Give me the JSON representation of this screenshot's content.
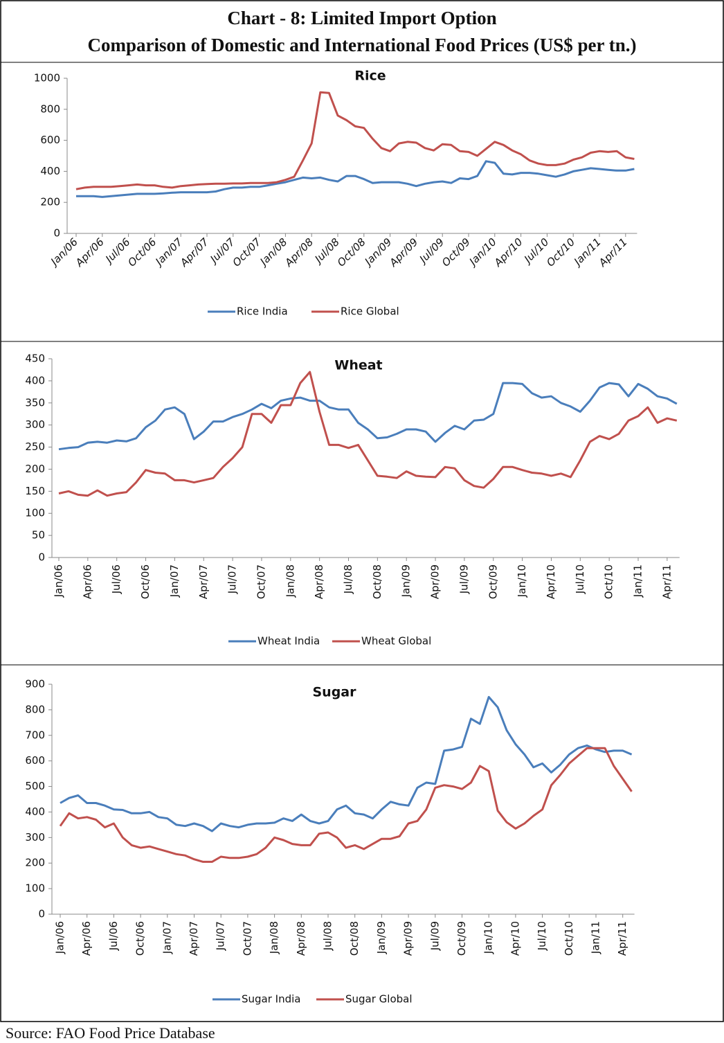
{
  "title": "Chart - 8: Limited Import Option",
  "subtitle": "Comparison of Domestic and International Food Prices (US$ per tn.)",
  "source": "Source: FAO Food Price Database",
  "chart_data": [
    {
      "type": "line",
      "title": "Rice",
      "categories": [
        "Jan/06",
        null,
        null,
        "Apr/06",
        null,
        null,
        "Jul/06",
        null,
        null,
        "Oct/06",
        null,
        null,
        "Jan/07",
        null,
        null,
        "Apr/07",
        null,
        null,
        "Jul/07",
        null,
        null,
        "Oct/07",
        null,
        null,
        "Jan/08",
        null,
        null,
        "Apr/08",
        null,
        null,
        "Jul/08",
        null,
        null,
        "Oct/08",
        null,
        null,
        "Jan/09",
        null,
        null,
        "Apr/09",
        null,
        null,
        "Jul/09",
        null,
        null,
        "Oct/09",
        null,
        null,
        "Jan/10",
        null,
        null,
        "Apr/10",
        null,
        null,
        "Jul/10",
        null,
        null,
        "Oct/10",
        null,
        null,
        "Jan/11",
        null,
        null,
        "Apr/11",
        null
      ],
      "series": [
        {
          "name": "Rice India",
          "color": "#4a7ebb",
          "values": [
            240,
            240,
            240,
            235,
            240,
            245,
            250,
            255,
            255,
            255,
            258,
            262,
            265,
            265,
            265,
            265,
            270,
            285,
            295,
            295,
            300,
            300,
            310,
            320,
            330,
            345,
            360,
            355,
            360,
            345,
            335,
            370,
            370,
            350,
            325,
            330,
            330,
            330,
            320,
            305,
            320,
            330,
            335,
            325,
            355,
            350,
            370,
            465,
            455,
            385,
            380,
            390,
            390,
            385,
            375,
            365,
            380,
            400,
            410,
            420,
            415,
            410,
            405,
            405,
            415
          ]
        },
        {
          "name": "Rice Global",
          "color": "#c0504d",
          "values": [
            285,
            295,
            300,
            300,
            300,
            305,
            310,
            315,
            310,
            310,
            300,
            295,
            305,
            310,
            315,
            318,
            320,
            320,
            322,
            322,
            325,
            325,
            325,
            330,
            345,
            365,
            470,
            580,
            910,
            905,
            760,
            730,
            690,
            680,
            610,
            550,
            530,
            580,
            590,
            585,
            550,
            535,
            575,
            570,
            530,
            525,
            500,
            545,
            590,
            570,
            535,
            510,
            470,
            450,
            440,
            440,
            450,
            475,
            490,
            520,
            530,
            525,
            530,
            490,
            480
          ]
        }
      ],
      "ylim": [
        0,
        1000
      ],
      "yticks": [
        0,
        200,
        400,
        600,
        800,
        1000
      ],
      "legend": "bottom"
    },
    {
      "type": "line",
      "title": "Wheat",
      "categories": [
        "Jan/06",
        null,
        null,
        "Apr/06",
        null,
        null,
        "Jul/06",
        null,
        null,
        "Oct/06",
        null,
        null,
        "Jan/07",
        null,
        null,
        "Apr/07",
        null,
        null,
        "Jul/07",
        null,
        null,
        "Oct/07",
        null,
        null,
        "Jan/08",
        null,
        null,
        "Apr/08",
        null,
        null,
        "Jul/08",
        null,
        null,
        "Oct/08",
        null,
        null,
        "Jan/09",
        null,
        null,
        "Apr/09",
        null,
        null,
        "Jul/09",
        null,
        null,
        "Oct/09",
        null,
        null,
        "Jan/10",
        null,
        null,
        "Apr/10",
        null,
        null,
        "Jul/10",
        null,
        null,
        "Oct/10",
        null,
        null,
        "Jan/11",
        null,
        null,
        "Apr/11",
        null
      ],
      "series": [
        {
          "name": "Wheat India",
          "color": "#4a7ebb",
          "values": [
            245,
            248,
            250,
            260,
            262,
            260,
            265,
            263,
            270,
            295,
            310,
            335,
            340,
            325,
            268,
            285,
            308,
            308,
            318,
            325,
            335,
            348,
            338,
            355,
            360,
            362,
            355,
            355,
            340,
            335,
            335,
            305,
            290,
            270,
            272,
            280,
            290,
            290,
            285,
            262,
            282,
            298,
            290,
            310,
            312,
            325,
            395,
            395,
            393,
            372,
            362,
            365,
            350,
            342,
            330,
            355,
            385,
            395,
            392,
            365,
            393,
            382,
            365,
            360,
            348
          ]
        },
        {
          "name": "Wheat Global",
          "color": "#c0504d",
          "values": [
            145,
            150,
            142,
            140,
            152,
            140,
            145,
            148,
            170,
            198,
            192,
            190,
            175,
            175,
            170,
            175,
            180,
            205,
            225,
            250,
            325,
            325,
            305,
            345,
            345,
            395,
            420,
            330,
            255,
            255,
            248,
            255,
            220,
            185,
            183,
            180,
            195,
            185,
            183,
            182,
            205,
            202,
            175,
            162,
            158,
            178,
            205,
            205,
            198,
            192,
            190,
            185,
            190,
            182,
            220,
            262,
            275,
            268,
            280,
            310,
            320,
            340,
            305,
            315,
            310
          ]
        }
      ],
      "ylim": [
        0,
        450
      ],
      "yticks": [
        0,
        50,
        100,
        150,
        200,
        250,
        300,
        350,
        400,
        450
      ],
      "legend": "bottom"
    },
    {
      "type": "line",
      "title": "Sugar",
      "categories": [
        "Jan/06",
        null,
        null,
        "Apr/06",
        null,
        null,
        "Jul/06",
        null,
        null,
        "Oct/06",
        null,
        null,
        "Jan/07",
        null,
        null,
        "Apr/07",
        null,
        null,
        "Jul/07",
        null,
        null,
        "Oct/07",
        null,
        null,
        "Jan/08",
        null,
        null,
        "Apr/08",
        null,
        null,
        "Jul/08",
        null,
        null,
        "Oct/08",
        null,
        null,
        "Jan/09",
        null,
        null,
        "Apr/09",
        null,
        null,
        "Jul/09",
        null,
        null,
        "Oct/09",
        null,
        null,
        "Jan/10",
        null,
        null,
        "Apr/10",
        null,
        null,
        "Jul/10",
        null,
        null,
        "Oct/10",
        null,
        null,
        "Jan/11",
        null,
        null,
        "Apr/11",
        null
      ],
      "series": [
        {
          "name": "Sugar India",
          "color": "#4a7ebb",
          "values": [
            435,
            455,
            465,
            435,
            435,
            425,
            410,
            408,
            395,
            395,
            400,
            380,
            375,
            350,
            345,
            355,
            345,
            325,
            355,
            345,
            340,
            350,
            355,
            355,
            358,
            375,
            365,
            390,
            365,
            355,
            365,
            410,
            425,
            395,
            390,
            375,
            410,
            440,
            430,
            425,
            495,
            515,
            510,
            640,
            645,
            655,
            765,
            745,
            850,
            810,
            720,
            665,
            625,
            575,
            590,
            555,
            585,
            625,
            650,
            660,
            645,
            635,
            640,
            640,
            625
          ]
        },
        {
          "name": "Sugar Global",
          "color": "#c0504d",
          "values": [
            345,
            395,
            375,
            380,
            370,
            340,
            355,
            300,
            270,
            260,
            265,
            255,
            245,
            235,
            230,
            215,
            205,
            205,
            225,
            220,
            220,
            225,
            235,
            260,
            300,
            290,
            275,
            270,
            270,
            315,
            320,
            300,
            260,
            270,
            255,
            275,
            295,
            295,
            305,
            355,
            365,
            410,
            495,
            505,
            500,
            490,
            515,
            580,
            560,
            405,
            360,
            335,
            355,
            385,
            410,
            505,
            545,
            590,
            620,
            650,
            650,
            650,
            580,
            530,
            480
          ]
        }
      ],
      "ylim": [
        0,
        900
      ],
      "yticks": [
        0,
        100,
        200,
        300,
        400,
        500,
        600,
        700,
        800,
        900
      ],
      "legend": "bottom"
    }
  ]
}
